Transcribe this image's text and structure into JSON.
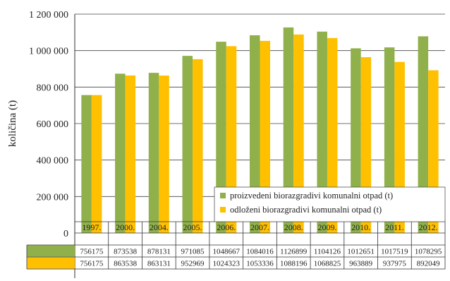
{
  "chart_data": {
    "type": "bar",
    "ylabel": "količina (t)",
    "ylim": [
      0,
      1200000
    ],
    "yticks": [
      "0",
      "200 000",
      "400 000",
      "600 000",
      "800 000",
      "1 000 000",
      "1 200 000"
    ],
    "grid": true,
    "legend_position": "bottom-right",
    "categories": [
      "1997.",
      "2000.",
      "2004.",
      "2005.",
      "2006.",
      "2007.",
      "2008.",
      "2009.",
      "2010.",
      "2011.",
      "2012."
    ],
    "series": [
      {
        "name": "proizvedeni biorazgradivi komunalni otpad (t)",
        "color": "#8fb04a",
        "values": [
          756175,
          873538,
          878131,
          971085,
          1048667,
          1084016,
          1126899,
          1104126,
          1012651,
          1017519,
          1078295
        ],
        "labels": [
          "756175",
          "873538",
          "878131",
          "971085",
          "1048667",
          "1084016",
          "1126899",
          "1104126",
          "1012651",
          "1017519",
          "1078295"
        ]
      },
      {
        "name": "odloženi biorazgradivi komunalni otpad (t)",
        "color": "#ffc000",
        "values": [
          756175,
          863538,
          863131,
          952969,
          1024323,
          1053336,
          1088196,
          1068825,
          963889,
          937975,
          892049
        ],
        "labels": [
          "756175",
          "863538",
          "863131",
          "952969",
          "1024323",
          "1053336",
          "1088196",
          "1068825",
          "963889",
          "937975",
          "892049"
        ]
      }
    ]
  }
}
